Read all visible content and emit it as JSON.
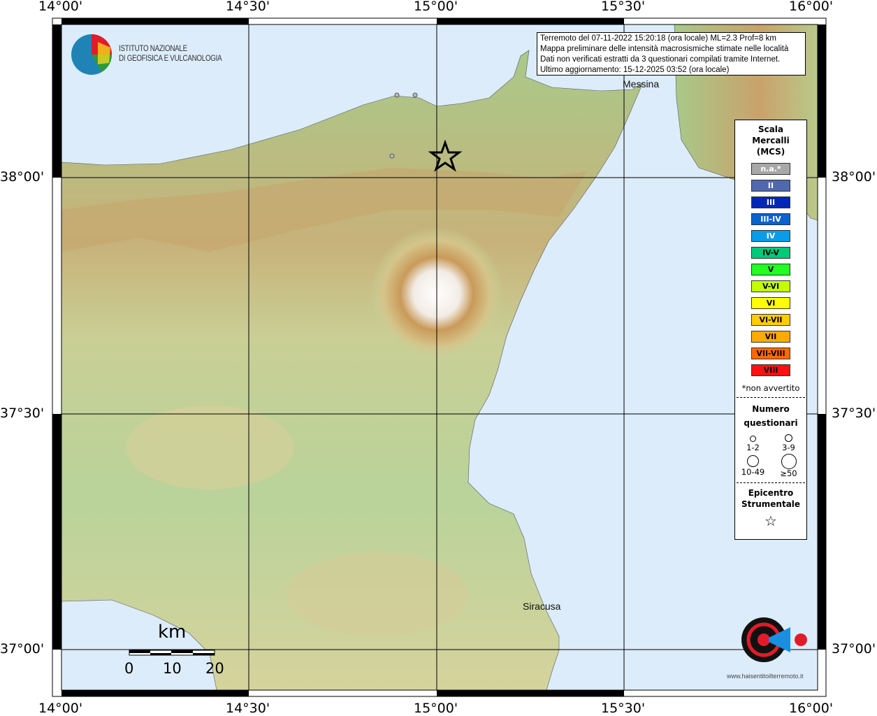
{
  "info_box": {
    "lines": [
      "Terremoto del 07-11-2022 15:20:18 (ora locale) ML=2.3 Prof=8 km",
      "Mappa preliminare delle intensità macrosismiche stimate nelle località",
      "Dati non verificati estratti da 3 questionari compilati tramite Internet.",
      "Ultimo aggiornamento: 15-12-2025 03:52 (ora locale)"
    ]
  },
  "logo_ingv": {
    "line1": "ISTITUTO NAZIONALE",
    "line2": "DI GEOFISICA E VULCANOLOGIA"
  },
  "logo_hsit": {
    "text": "www.haisentitoilterremoto.it"
  },
  "axes": {
    "lon_labels": [
      "14°00'",
      "14°30'",
      "15°00'",
      "15°30'",
      "16°00'"
    ],
    "lat_labels": [
      "38°00'",
      "37°30'",
      "37°00'"
    ]
  },
  "cities": [
    {
      "name": "Messina"
    },
    {
      "name": "Siracusa"
    }
  ],
  "scale_bar": {
    "unit": "km",
    "labels": [
      "0",
      "10",
      "20"
    ]
  },
  "legend": {
    "title": [
      "Scala",
      "Mercalli",
      "(MCS)"
    ],
    "intensities": [
      {
        "label": "n.a.*",
        "color": "#a8a8a8",
        "text_color": "#ffffff"
      },
      {
        "label": "II",
        "color": "#4f68ae",
        "text_color": "#ffffff"
      },
      {
        "label": "III",
        "color": "#0027b8",
        "text_color": "#ffffff"
      },
      {
        "label": "III-IV",
        "color": "#0a62cc",
        "text_color": "#ffffff"
      },
      {
        "label": "IV",
        "color": "#0a9ce8",
        "text_color": "#ffffff"
      },
      {
        "label": "IV-V",
        "color": "#00c97a",
        "text_color": "#000000"
      },
      {
        "label": "V",
        "color": "#22ff22",
        "text_color": "#000000"
      },
      {
        "label": "V-VI",
        "color": "#c4ff00",
        "text_color": "#000000"
      },
      {
        "label": "VI",
        "color": "#ffff00",
        "text_color": "#000000"
      },
      {
        "label": "VI-VII",
        "color": "#ffcc00",
        "text_color": "#000000"
      },
      {
        "label": "VII",
        "color": "#ffaa00",
        "text_color": "#000000"
      },
      {
        "label": "VII-VIII",
        "color": "#ff6a00",
        "text_color": "#000000"
      },
      {
        "label": "VIII",
        "color": "#ff1010",
        "text_color": "#000000"
      }
    ],
    "note": "*non avvertito",
    "questionnaires_title": [
      "Numero",
      "questionari"
    ],
    "questionnaire_sizes": [
      "1-2",
      "3-9",
      "10-49",
      "≥50"
    ],
    "epicenter_title": [
      "Epicentro",
      "Strumentale"
    ]
  }
}
